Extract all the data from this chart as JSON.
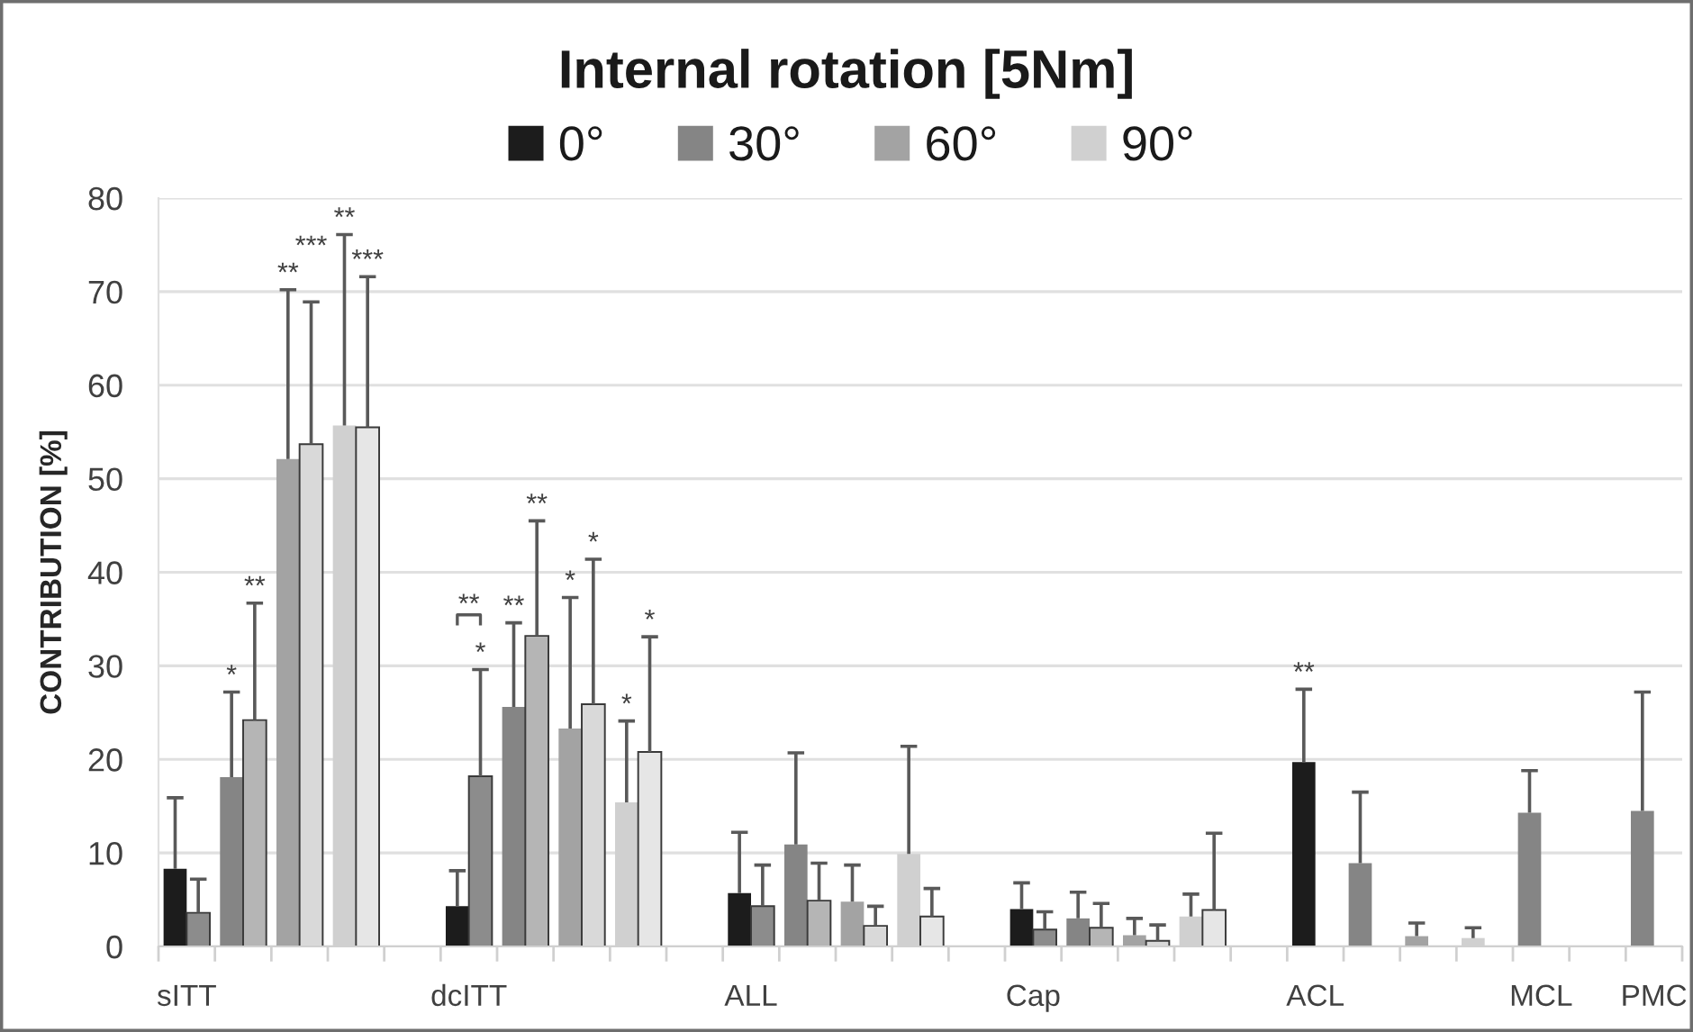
{
  "chart_data": {
    "type": "bar",
    "title": "Internal rotation [5Nm]",
    "ylabel": "CONTRIBUTION [%]",
    "categories": [
      "sITT",
      null,
      null,
      null,
      null,
      "dcITT",
      null,
      null,
      null,
      null,
      "ALL",
      null,
      null,
      null,
      null,
      "Cap",
      null,
      null,
      null,
      null,
      "ACL",
      null,
      null,
      null,
      "MCL",
      null,
      "PMC"
    ],
    "series": [
      {
        "name": "0°",
        "color": "#1c1c1c",
        "values": [
          8.3,
          null,
          null,
          null,
          null,
          4.3,
          null,
          null,
          null,
          null,
          5.7,
          null,
          null,
          null,
          null,
          4.0,
          null,
          null,
          null,
          null,
          19.7,
          null,
          null,
          null,
          null,
          null,
          null
        ],
        "errors": [
          [
            8.3,
            15.9
          ],
          null,
          null,
          null,
          null,
          [
            4.3,
            8.1
          ],
          null,
          null,
          null,
          null,
          [
            5.7,
            12.2
          ],
          null,
          null,
          null,
          null,
          [
            4.0,
            6.8
          ],
          null,
          null,
          null,
          null,
          [
            19.7,
            27.5
          ],
          null,
          null,
          null,
          null,
          null,
          null
        ]
      },
      {
        "color": "#8c8c8c",
        "values": [
          3.6,
          null,
          null,
          null,
          null,
          18.2,
          null,
          null,
          null,
          null,
          4.3,
          null,
          null,
          null,
          null,
          1.8,
          null,
          null,
          null,
          null,
          null,
          null,
          null,
          null,
          null,
          null,
          null
        ],
        "errors": [
          [
            3.6,
            7.2
          ],
          null,
          null,
          null,
          null,
          [
            18.2,
            29.6
          ],
          null,
          null,
          null,
          null,
          [
            4.3,
            8.7
          ],
          null,
          null,
          null,
          null,
          [
            1.8,
            3.7
          ],
          null,
          null,
          null,
          null,
          null,
          null,
          null,
          null,
          null,
          null,
          null
        ]
      },
      {
        "name": "30°",
        "color": "#858585",
        "values": [
          null,
          18.1,
          null,
          null,
          null,
          null,
          25.6,
          null,
          null,
          null,
          null,
          10.9,
          null,
          null,
          null,
          null,
          3.0,
          null,
          null,
          null,
          null,
          8.9,
          null,
          null,
          14.3,
          null,
          14.5
        ],
        "errors": [
          null,
          [
            18.1,
            27.2
          ],
          null,
          null,
          null,
          null,
          [
            25.6,
            34.6
          ],
          null,
          null,
          null,
          null,
          [
            10.9,
            20.7
          ],
          null,
          null,
          null,
          null,
          [
            3.0,
            5.8
          ],
          null,
          null,
          null,
          null,
          [
            8.9,
            16.5
          ],
          null,
          null,
          [
            14.3,
            18.8
          ],
          null,
          [
            14.5,
            27.2
          ]
        ]
      },
      {
        "color": "#b5b5b5",
        "values": [
          null,
          24.2,
          null,
          null,
          null,
          null,
          33.2,
          null,
          null,
          null,
          null,
          4.9,
          null,
          null,
          null,
          null,
          2.0,
          null,
          null,
          null,
          null,
          null,
          null,
          null,
          null,
          null,
          null
        ],
        "errors": [
          null,
          [
            24.2,
            36.7
          ],
          null,
          null,
          null,
          null,
          [
            33.2,
            45.5
          ],
          null,
          null,
          null,
          null,
          [
            4.9,
            8.9
          ],
          null,
          null,
          null,
          null,
          [
            2.0,
            4.6
          ],
          null,
          null,
          null,
          null,
          null,
          null,
          null,
          null,
          null,
          null
        ]
      },
      {
        "name": "60°",
        "color": "#a3a3a3",
        "values": [
          null,
          null,
          52.1,
          null,
          null,
          null,
          null,
          23.3,
          null,
          null,
          null,
          null,
          4.8,
          null,
          null,
          null,
          null,
          1.2,
          null,
          null,
          null,
          null,
          1.1,
          null,
          null,
          null,
          null
        ],
        "errors": [
          null,
          null,
          [
            52.1,
            70.2
          ],
          null,
          null,
          null,
          null,
          [
            23.3,
            37.3
          ],
          null,
          null,
          null,
          null,
          [
            4.8,
            8.7
          ],
          null,
          null,
          null,
          null,
          [
            1.2,
            3.0
          ],
          null,
          null,
          null,
          null,
          [
            1.1,
            2.5
          ],
          null,
          null,
          null,
          null
        ]
      },
      {
        "color": "#d9d9d9",
        "values": [
          null,
          null,
          53.7,
          null,
          null,
          null,
          null,
          25.9,
          null,
          null,
          null,
          null,
          2.2,
          null,
          null,
          null,
          null,
          0.6,
          null,
          null,
          null,
          null,
          null,
          null,
          null,
          null,
          null
        ],
        "errors": [
          null,
          null,
          [
            53.7,
            68.9
          ],
          null,
          null,
          null,
          null,
          [
            25.9,
            41.4
          ],
          null,
          null,
          null,
          null,
          [
            2.2,
            4.3
          ],
          null,
          null,
          null,
          null,
          [
            0.6,
            2.3
          ],
          null,
          null,
          null,
          null,
          null,
          null,
          null,
          null,
          null
        ]
      },
      {
        "name": "90°",
        "color": "#d0d0d0",
        "values": [
          null,
          null,
          null,
          55.7,
          null,
          null,
          null,
          null,
          15.4,
          null,
          null,
          null,
          null,
          9.9,
          null,
          null,
          null,
          null,
          3.2,
          null,
          null,
          null,
          null,
          0.9,
          null,
          null,
          null
        ],
        "errors": [
          null,
          null,
          null,
          [
            55.7,
            76.1
          ],
          null,
          null,
          null,
          null,
          [
            15.4,
            24.1
          ],
          null,
          null,
          null,
          null,
          [
            9.9,
            21.4
          ],
          null,
          null,
          null,
          null,
          [
            3.2,
            5.6
          ],
          null,
          null,
          null,
          null,
          [
            0.9,
            2.0
          ],
          null,
          null,
          null
        ]
      },
      {
        "color": "#e6e6e6",
        "values": [
          null,
          null,
          null,
          55.5,
          null,
          null,
          null,
          null,
          20.8,
          null,
          null,
          null,
          null,
          3.2,
          null,
          null,
          null,
          null,
          3.9,
          null,
          null,
          null,
          null,
          null,
          null,
          null,
          null
        ],
        "errors": [
          null,
          null,
          null,
          [
            55.5,
            71.6
          ],
          null,
          null,
          null,
          null,
          [
            20.8,
            33.1
          ],
          null,
          null,
          null,
          null,
          [
            3.2,
            6.2
          ],
          null,
          null,
          null,
          null,
          [
            3.9,
            12.1
          ],
          null,
          null,
          null,
          null,
          null,
          null,
          null,
          null
        ]
      }
    ],
    "ylim": [
      0,
      80
    ],
    "yticks": [
      0,
      10,
      20,
      30,
      40,
      50,
      60,
      70,
      80
    ],
    "grid": "y",
    "legend": "top",
    "annotations": [
      {
        "text": "*",
        "y": 27.2
      },
      {
        "text": "**",
        "y": 36.7
      },
      {
        "text": "**",
        "y": 70.2
      },
      {
        "text": "***",
        "y": 68.9
      },
      {
        "text": "**",
        "y": 76.1
      },
      {
        "text": "***",
        "y": 71.6
      },
      {
        "text": "*",
        "x": "dcITT",
        "y": 29.6
      },
      {
        "text": "**",
        "x": "dcITT",
        "y": 29.6
      },
      {
        "text": "**",
        "y": 34.6
      },
      {
        "text": "**",
        "y": 45.5
      },
      {
        "text": "*",
        "y": 37.3
      },
      {
        "text": "*",
        "y": 41.4
      },
      {
        "text": "*",
        "y": 24.1
      },
      {
        "text": "*",
        "y": 33.1
      },
      {
        "text": "**",
        "x": "ACL",
        "y": 27.5
      }
    ]
  }
}
